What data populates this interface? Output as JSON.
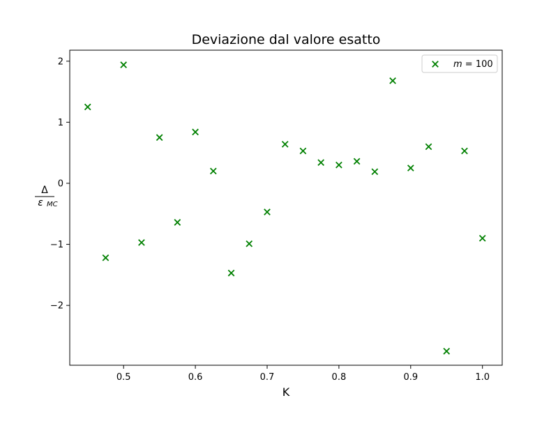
{
  "chart_data": {
    "type": "scatter",
    "title": "Deviazione dal valore esatto",
    "xlabel": "K",
    "ylabel": {
      "numerator": "Δ",
      "denominator_main": "ε",
      "denominator_sub": "MC"
    },
    "xlim": [
      0.425,
      1.0275
    ],
    "ylim": [
      -2.98,
      2.18
    ],
    "x_ticks": [
      0.5,
      0.6,
      0.7,
      0.8,
      0.9,
      1.0
    ],
    "x_tick_labels": [
      "0.5",
      "0.6",
      "0.7",
      "0.8",
      "0.9",
      "1.0"
    ],
    "y_ticks": [
      2,
      1,
      0,
      -1,
      -2
    ],
    "y_tick_labels": [
      "2",
      "1",
      "0",
      "−1",
      "−2"
    ],
    "grid": false,
    "legend": {
      "placement": "top-right",
      "entries": [
        {
          "label_var": "m",
          "label_rest": " = 100",
          "marker": "x",
          "color": "#008000"
        }
      ]
    },
    "series": [
      {
        "name": "m = 100",
        "marker": "x",
        "color": "#008000",
        "x": [
          0.45,
          0.475,
          0.5,
          0.525,
          0.55,
          0.575,
          0.6,
          0.625,
          0.65,
          0.675,
          0.7,
          0.725,
          0.75,
          0.775,
          0.8,
          0.825,
          0.85,
          0.875,
          0.9,
          0.925,
          0.95,
          0.975,
          1.0
        ],
        "y": [
          1.25,
          -1.22,
          1.94,
          -0.97,
          0.75,
          -0.64,
          0.84,
          0.2,
          -1.47,
          -0.99,
          -0.47,
          0.64,
          0.53,
          0.34,
          0.3,
          0.36,
          0.19,
          1.68,
          0.25,
          0.6,
          -2.75,
          0.53,
          -0.9
        ]
      }
    ]
  }
}
